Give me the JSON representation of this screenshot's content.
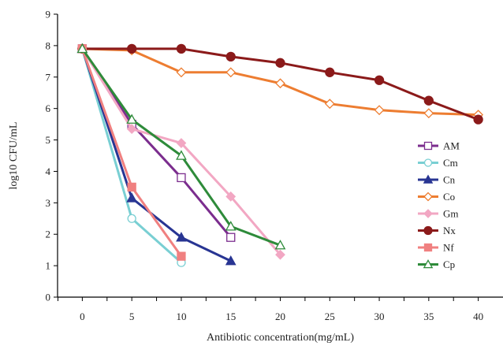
{
  "chart_data": {
    "type": "line",
    "xlabel": "Antibiotic concentration(mg/mL)",
    "ylabel": "log10 CFU/mL",
    "xlim": [
      -2.5,
      42.5
    ],
    "ylim": [
      0,
      9
    ],
    "xticks": [
      0,
      5,
      10,
      15,
      20,
      25,
      30,
      35,
      40
    ],
    "yticks": [
      0,
      1,
      2,
      3,
      4,
      5,
      6,
      7,
      8,
      9
    ],
    "grid": false,
    "legend": "right",
    "series": [
      {
        "name": "AM",
        "color": "#7b2d8e",
        "marker": "square-open",
        "x": [
          0,
          5,
          10,
          15
        ],
        "y": [
          7.9,
          5.5,
          3.8,
          1.9
        ]
      },
      {
        "name": "Cm",
        "color": "#79cfd3",
        "marker": "circle-open",
        "x": [
          0,
          5,
          10
        ],
        "y": [
          7.9,
          2.5,
          1.1
        ]
      },
      {
        "name": "Cn",
        "color": "#283593",
        "marker": "triangle-filled",
        "x": [
          0,
          5,
          10,
          15
        ],
        "y": [
          7.9,
          3.15,
          1.9,
          1.15
        ]
      },
      {
        "name": "Co",
        "color": "#ed7d31",
        "marker": "diamond-open",
        "x": [
          0,
          5,
          10,
          15,
          20,
          25,
          30,
          35,
          40
        ],
        "y": [
          7.9,
          7.85,
          7.15,
          7.15,
          6.8,
          6.15,
          5.95,
          5.85,
          5.8
        ]
      },
      {
        "name": "Gm",
        "color": "#f2a7c3",
        "marker": "diamond-filled",
        "x": [
          0,
          5,
          10,
          15,
          20
        ],
        "y": [
          7.9,
          5.35,
          4.9,
          3.2,
          1.35
        ]
      },
      {
        "name": "Nx",
        "color": "#8b1a1a",
        "marker": "circle-filled",
        "x": [
          0,
          5,
          10,
          15,
          20,
          25,
          30,
          35,
          40
        ],
        "y": [
          7.9,
          7.9,
          7.9,
          7.65,
          7.45,
          7.15,
          6.9,
          6.25,
          5.65
        ]
      },
      {
        "name": "Nf",
        "color": "#f08080",
        "marker": "square-filled",
        "x": [
          0,
          5,
          10
        ],
        "y": [
          7.9,
          3.5,
          1.3
        ]
      },
      {
        "name": "Cp",
        "color": "#2e8b3a",
        "marker": "triangle-open",
        "x": [
          0,
          5,
          10,
          15,
          20
        ],
        "y": [
          7.9,
          5.65,
          4.5,
          2.25,
          1.65
        ]
      }
    ]
  }
}
